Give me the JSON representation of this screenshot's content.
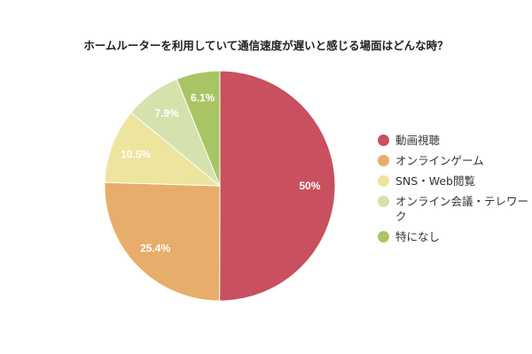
{
  "chart_data": {
    "type": "pie",
    "title": "ホームルーターを利用していて通信速度が遅いと感じる場面はどんな時？",
    "slices": [
      {
        "label": "動画視聴",
        "value": 50,
        "display": "50%",
        "color": "#c9505e"
      },
      {
        "label": "オンラインゲーム",
        "value": 25.4,
        "display": "25.4%",
        "color": "#e8ad6a"
      },
      {
        "label": "SNS・Web閲覧",
        "value": 10.5,
        "display": "10.5%",
        "color": "#ede49e"
      },
      {
        "label": "オンライン会議・テレワーク",
        "value": 7.9,
        "display": "7.9%",
        "color": "#d5e2ad"
      },
      {
        "label": "特になし",
        "value": 6.1,
        "display": "6.1%",
        "color": "#a9c464"
      }
    ],
    "legend_position": "right",
    "start_angle": "top",
    "direction": "clockwise"
  }
}
